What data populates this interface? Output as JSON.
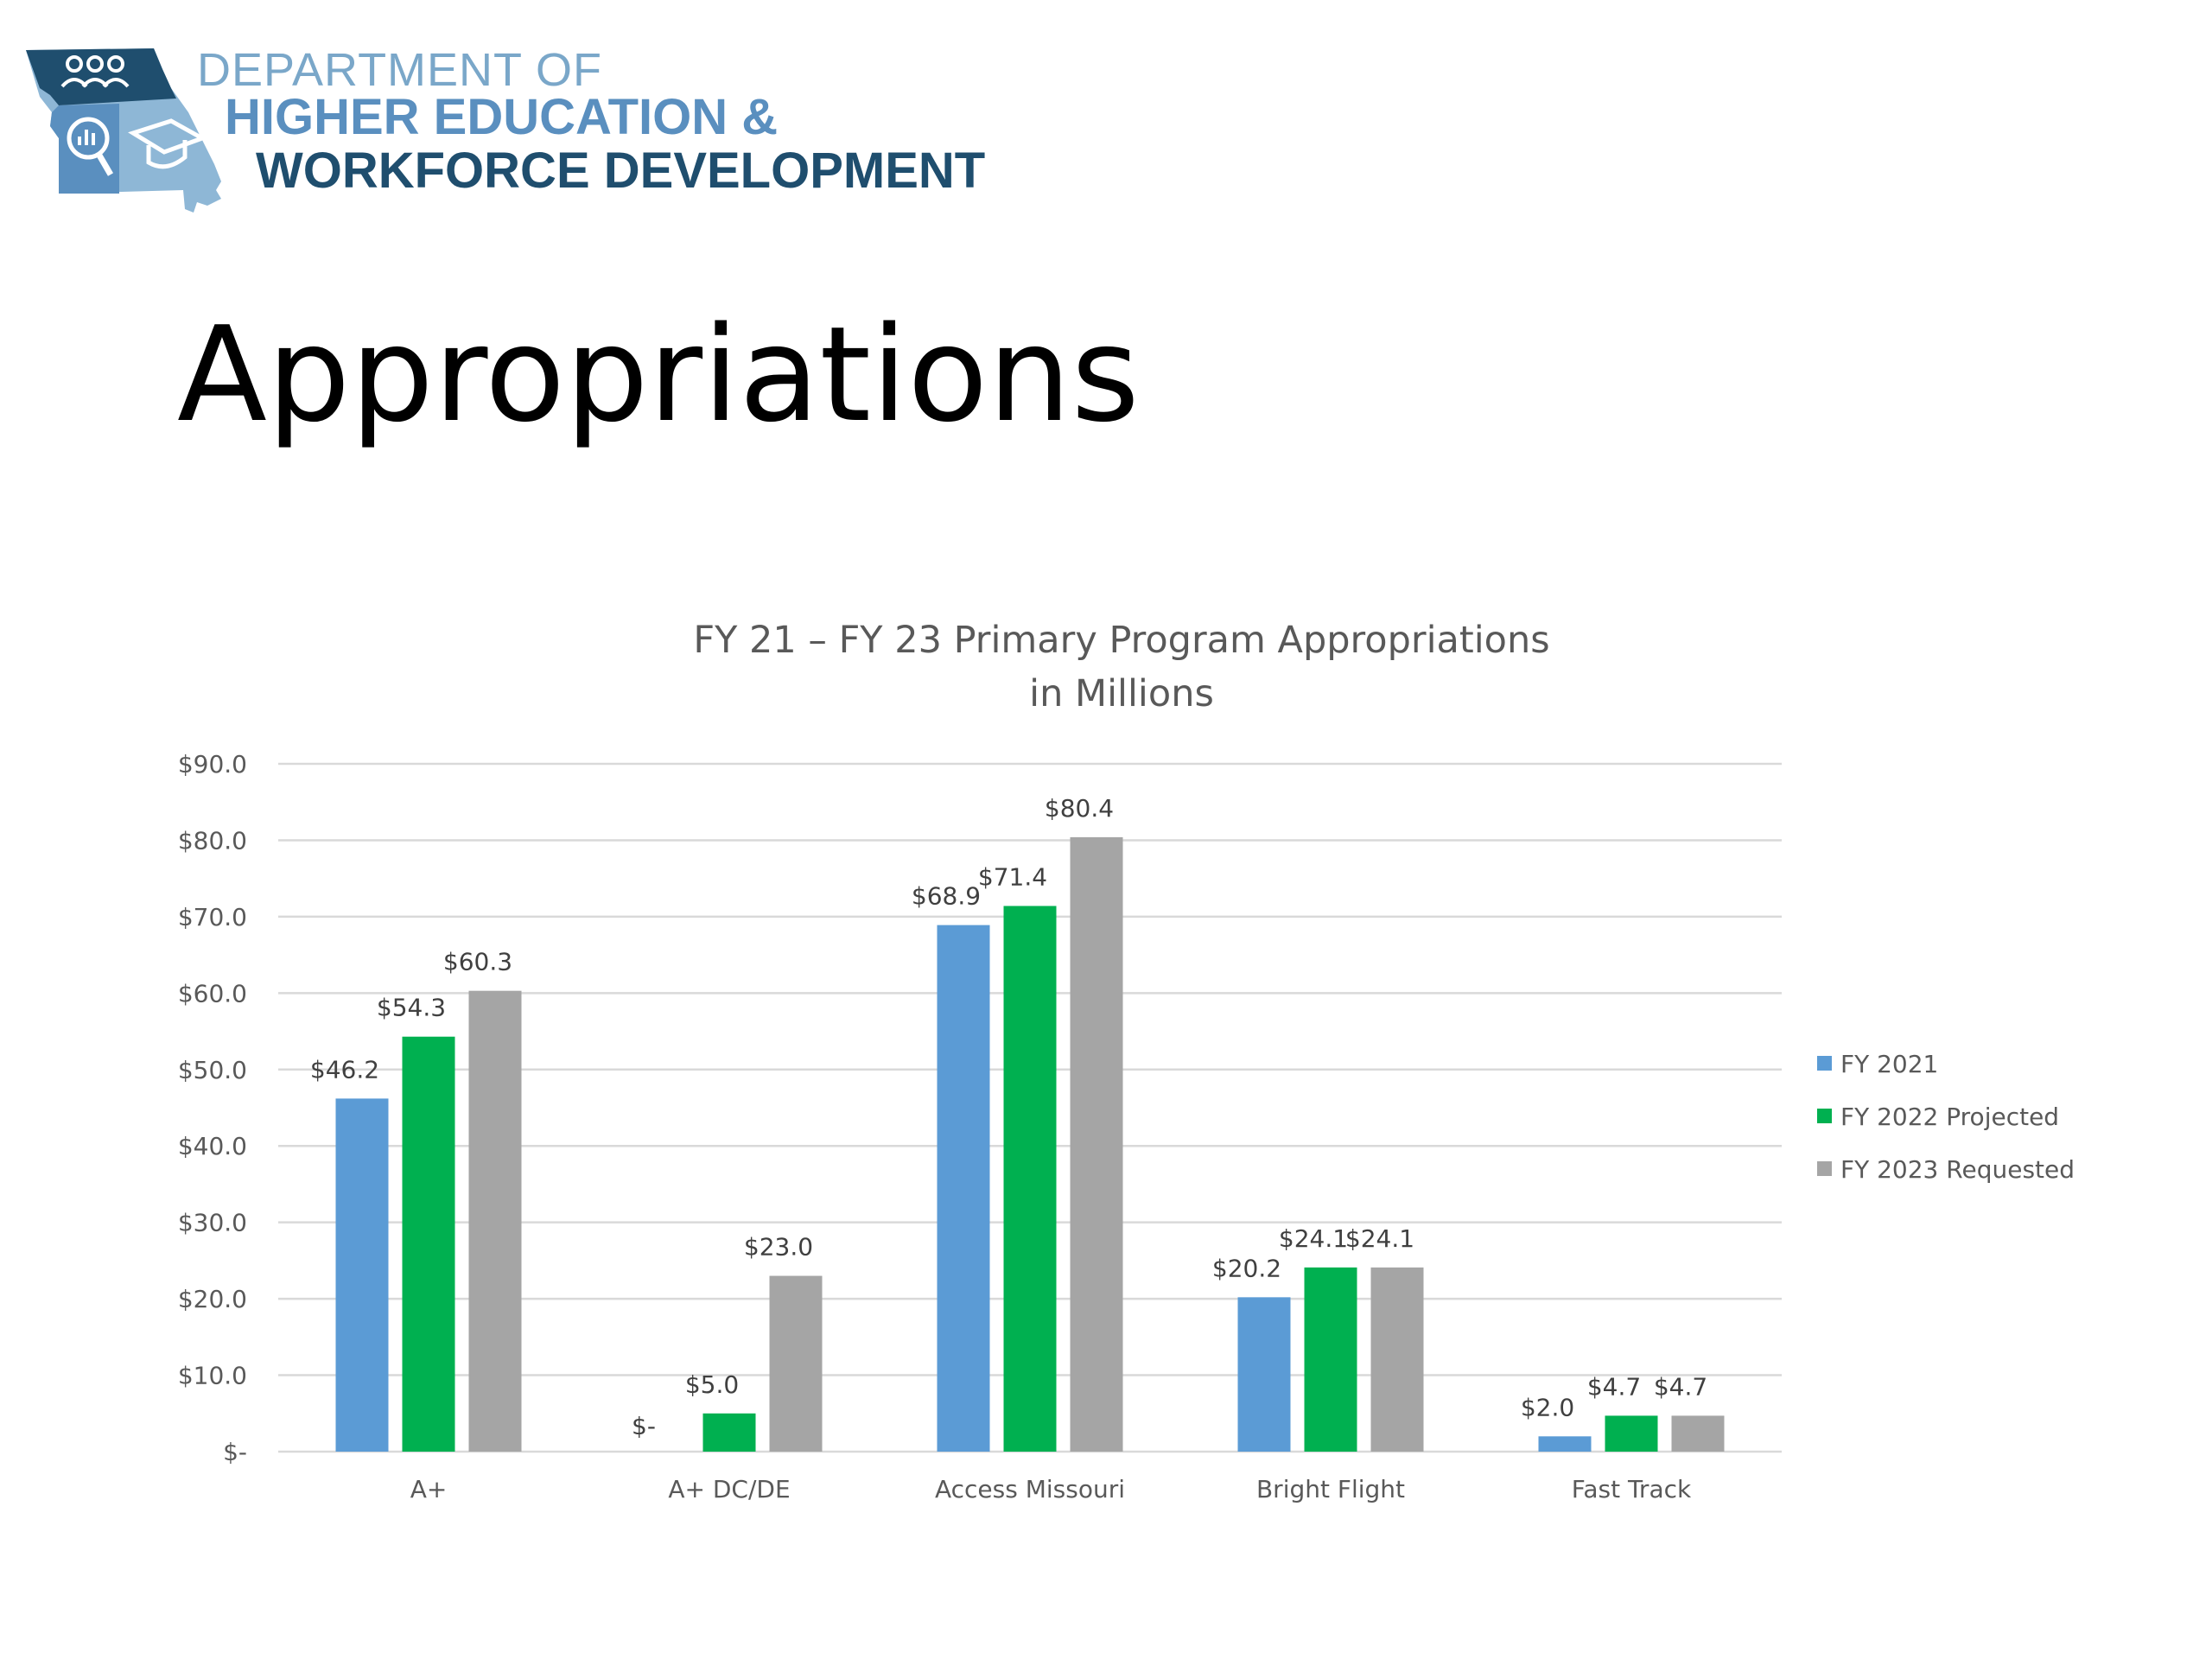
{
  "logo": {
    "line1": "DEPARTMENT OF",
    "line2": "HIGHER EDUCATION &",
    "line3": "WORKFORCE DEVELOPMENT",
    "icon": "missouri-map-logo-icon"
  },
  "slide_title": "Appropriations",
  "colors": {
    "fy2021": "#5b9bd5",
    "fy2022": "#00b050",
    "fy2023": "#a5a5a5",
    "grid": "#d9d9d9",
    "text": "#595959"
  },
  "chart_data": {
    "type": "bar",
    "title": "FY 21 – FY 23 Primary Program Appropriations",
    "subtitle": "in Millions",
    "categories": [
      "A+",
      "A+ DC/DE",
      "Access Missouri",
      "Bright Flight",
      "Fast Track"
    ],
    "series": [
      {
        "name": "FY 2021",
        "values": [
          46.2,
          0,
          68.9,
          20.2,
          2.0
        ],
        "labels": [
          "$46.2",
          "$-",
          "$68.9",
          "$20.2",
          "$2.0"
        ]
      },
      {
        "name": "FY 2022 Projected",
        "values": [
          54.3,
          5.0,
          71.4,
          24.1,
          4.7
        ],
        "labels": [
          "$54.3",
          "$5.0",
          "$71.4",
          "$24.1",
          "$4.7"
        ]
      },
      {
        "name": "FY 2023 Requested",
        "values": [
          60.3,
          23.0,
          80.4,
          24.1,
          4.7
        ],
        "labels": [
          "$60.3",
          "$23.0",
          "$80.4",
          "$24.1",
          "$4.7"
        ]
      }
    ],
    "y_ticks": [
      0,
      10,
      20,
      30,
      40,
      50,
      60,
      70,
      80,
      90
    ],
    "y_tick_labels": [
      "$-",
      "$10.0",
      "$20.0",
      "$30.0",
      "$40.0",
      "$50.0",
      "$60.0",
      "$70.0",
      "$80.0",
      "$90.0"
    ],
    "ylim": [
      0,
      90
    ],
    "grid": true,
    "legend_position": "right"
  }
}
